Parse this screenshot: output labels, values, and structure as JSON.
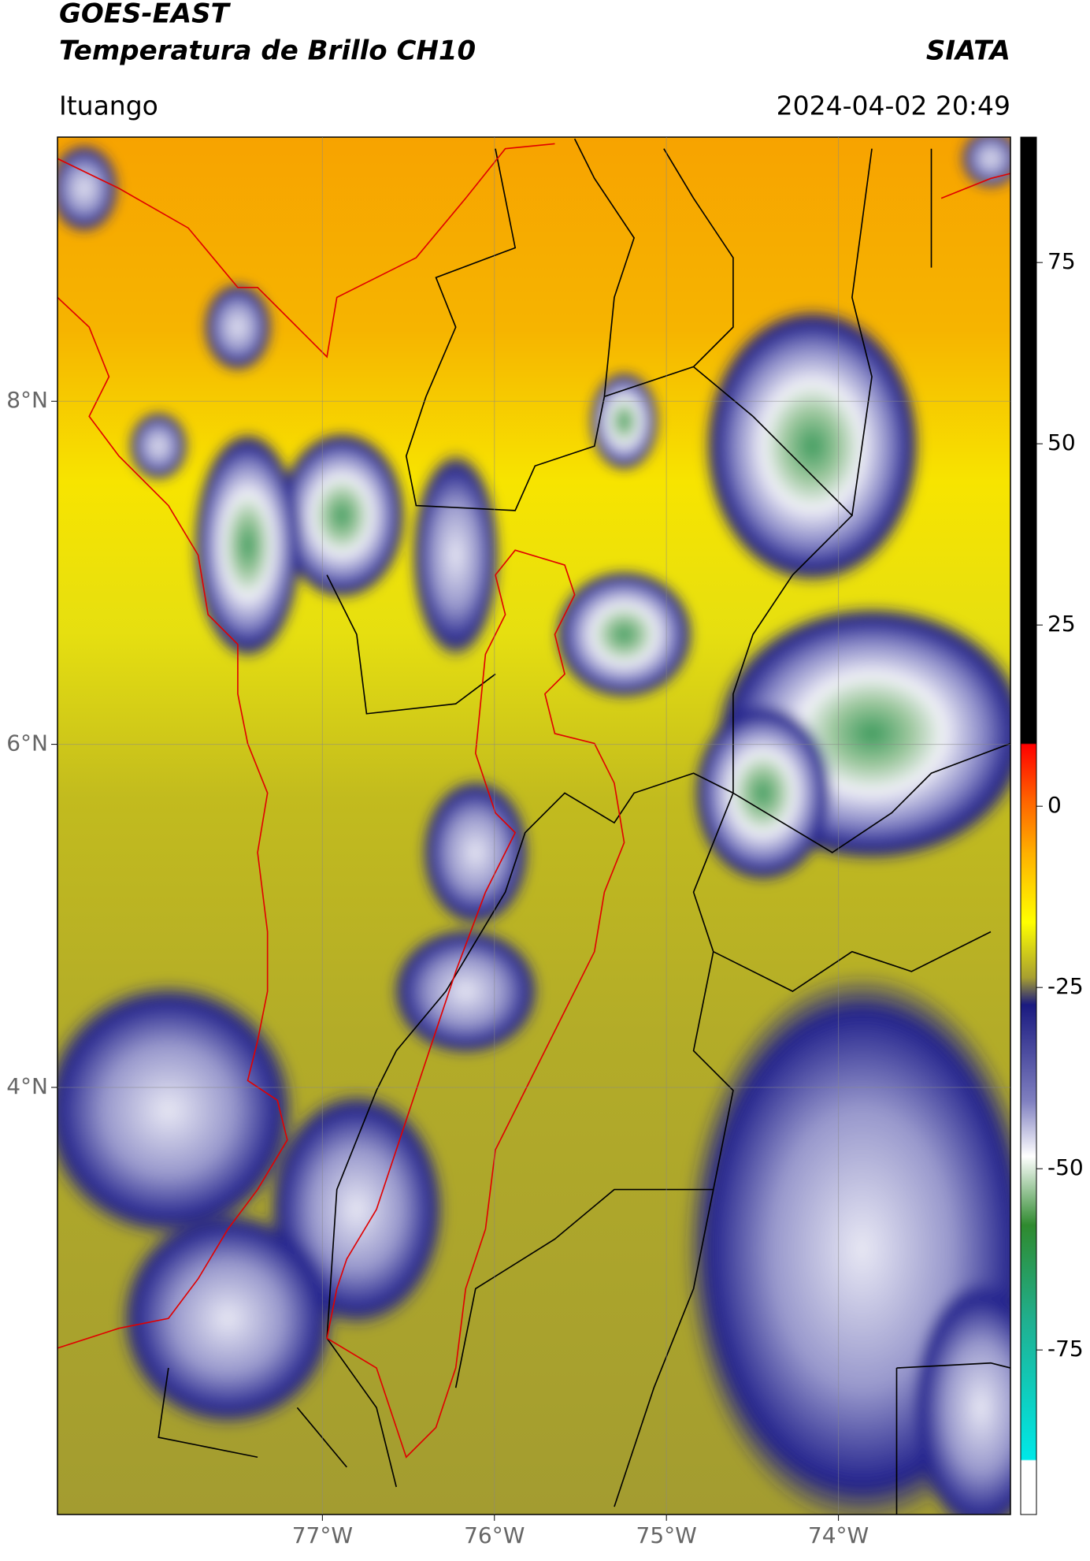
{
  "header": {
    "title": "GOES-EAST",
    "subtitle": "Temperatura de Brillo CH10",
    "brand": "SIATA",
    "location": "Ituango",
    "datetime": "2024-04-02 20:49"
  },
  "map": {
    "xlim": [
      -78.54,
      -73.0
    ],
    "ylim": [
      1.51,
      9.54
    ],
    "xticks": [
      {
        "value": -77,
        "label": "77°W"
      },
      {
        "value": -76,
        "label": "76°W"
      },
      {
        "value": -75,
        "label": "75°W"
      },
      {
        "value": -74,
        "label": "74°W"
      }
    ],
    "yticks": [
      {
        "value": 8,
        "label": "8°N"
      },
      {
        "value": 6,
        "label": "6°N"
      },
      {
        "value": 4,
        "label": "4°N"
      }
    ],
    "grid": true
  },
  "colorbar": {
    "lim": [
      -97.7,
      92.3
    ],
    "ticks": [
      75,
      50,
      25,
      0,
      -25,
      -50,
      -75
    ]
  }
}
